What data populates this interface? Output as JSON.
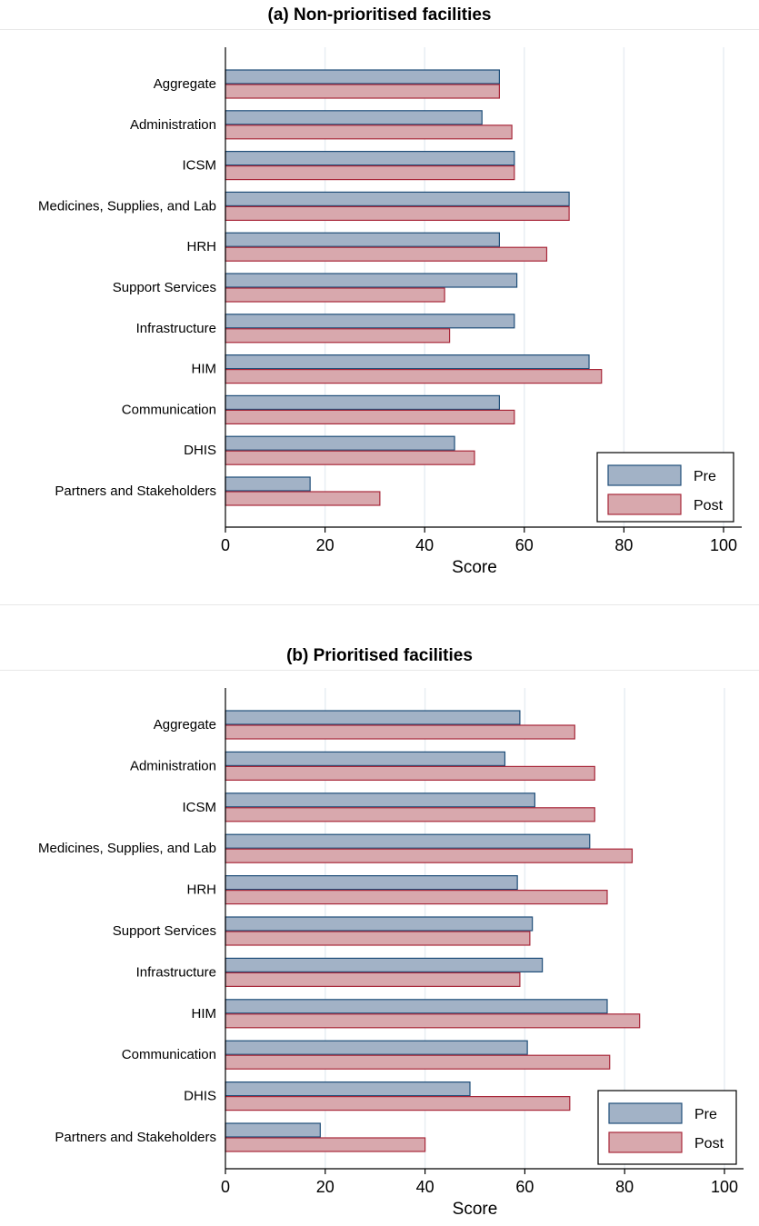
{
  "colors": {
    "pre": "#a2b2c6",
    "pre_edge": "#1f4e79",
    "post": "#d8a8ad",
    "post_edge": "#a8283a",
    "grid": "#e8eef3"
  },
  "chart_data": [
    {
      "type": "bar",
      "orientation": "horizontal",
      "title": "(a) Non-prioritised facilities",
      "xlabel": "Score",
      "ylabel": "",
      "xlim": [
        0,
        100
      ],
      "xticks": [
        "0",
        "20",
        "40",
        "60",
        "80",
        "100"
      ],
      "grid": "vertical",
      "legend_position": "bottom-right",
      "categories": [
        "Aggregate",
        "Administration",
        "ICSM",
        "Medicines, Supplies, and Lab",
        "HRH",
        "Support Services",
        "Infrastructure",
        "HIM",
        "Communication",
        "DHIS",
        "Partners and Stakeholders"
      ],
      "series": [
        {
          "name": "Pre",
          "values": [
            55,
            51.5,
            58,
            69,
            55,
            58.5,
            58,
            73,
            55,
            46,
            17
          ]
        },
        {
          "name": "Post",
          "values": [
            55,
            57.5,
            58,
            69,
            64.5,
            44,
            45,
            75.5,
            58,
            50,
            31
          ]
        }
      ]
    },
    {
      "type": "bar",
      "orientation": "horizontal",
      "title": "(b) Prioritised facilities",
      "xlabel": "Score",
      "ylabel": "",
      "xlim": [
        0,
        100
      ],
      "xticks": [
        "0",
        "20",
        "40",
        "60",
        "80",
        "100"
      ],
      "grid": "vertical",
      "legend_position": "bottom-right",
      "categories": [
        "Aggregate",
        "Administration",
        "ICSM",
        "Medicines, Supplies, and Lab",
        "HRH",
        "Support Services",
        "Infrastructure",
        "HIM",
        "Communication",
        "DHIS",
        "Partners and Stakeholders"
      ],
      "series": [
        {
          "name": "Pre",
          "values": [
            59,
            56,
            62,
            73,
            58.5,
            61.5,
            63.5,
            76.5,
            60.5,
            49,
            19
          ]
        },
        {
          "name": "Post",
          "values": [
            70,
            74,
            74,
            81.5,
            76.5,
            61,
            59,
            83,
            77,
            69,
            40
          ]
        }
      ]
    }
  ]
}
